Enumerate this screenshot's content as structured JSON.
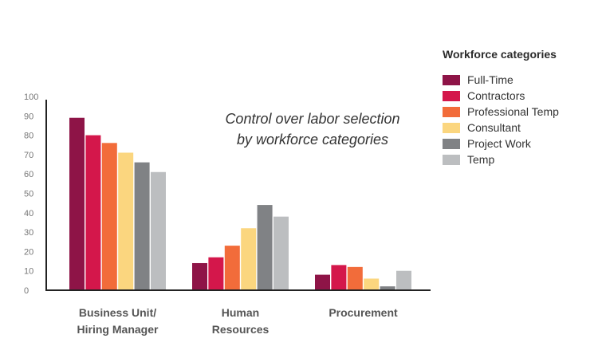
{
  "chart_data": {
    "type": "bar",
    "title_lines": [
      "Control over labor selection",
      "by workforce categories"
    ],
    "categories": [
      [
        "Business Unit/",
        "Hiring Manager"
      ],
      [
        "Human",
        "Resources"
      ],
      [
        "Procurement"
      ]
    ],
    "series": [
      {
        "name": "Full-Time",
        "color": "#8e1447",
        "values": [
          89,
          14,
          8
        ]
      },
      {
        "name": "Contractors",
        "color": "#d4174b",
        "values": [
          80,
          17,
          13
        ]
      },
      {
        "name": "Professional Temp",
        "color": "#f26c3a",
        "values": [
          76,
          23,
          12
        ]
      },
      {
        "name": "Consultant",
        "color": "#fbd67f",
        "values": [
          71,
          32,
          6
        ]
      },
      {
        "name": "Project Work",
        "color": "#808285",
        "values": [
          66,
          44,
          2
        ]
      },
      {
        "name": "Temp",
        "color": "#bcbec0",
        "values": [
          61,
          38,
          10
        ]
      }
    ],
    "ylim": [
      0,
      100
    ],
    "yticks": [
      0,
      10,
      20,
      30,
      40,
      50,
      60,
      70,
      80,
      90,
      100
    ],
    "legend": {
      "title": "Workforce categories",
      "placement": "right"
    }
  }
}
